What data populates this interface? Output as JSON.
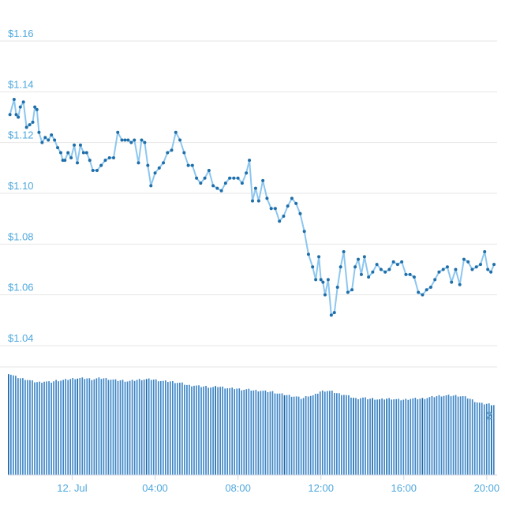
{
  "chart_data": [
    {
      "type": "line",
      "title": "",
      "xlabel": "",
      "ylabel": "",
      "ylim": [
        1.04,
        1.16
      ],
      "y_ticks": [
        "$1.16",
        "$1.14",
        "$1.12",
        "$1.10",
        "$1.08",
        "$1.06",
        "$1.04"
      ],
      "y_tick_values": [
        1.16,
        1.14,
        1.12,
        1.1,
        1.08,
        1.06,
        1.04
      ],
      "x_ticks": [
        {
          "label": "12. Jul",
          "hours": 0
        },
        {
          "label": "04:00",
          "hours": 4
        },
        {
          "label": "08:00",
          "hours": 8
        },
        {
          "label": "12:00",
          "hours": 12
        },
        {
          "label": "16:00",
          "hours": 16
        },
        {
          "label": "20:00",
          "hours": 20
        }
      ],
      "x_range_hours": [
        -3.1,
        20.5
      ],
      "grid": true,
      "colors": {
        "line": "#8cc6ef",
        "marker": "#1f6ea8"
      },
      "series": [
        {
          "hours": [
            -3.0,
            -2.8,
            -2.7,
            -2.6,
            -2.5,
            -2.35,
            -2.2,
            -2.05,
            -1.9,
            -1.8,
            -1.7,
            -1.6,
            -1.45,
            -1.3,
            -1.15,
            -1.0,
            -0.85,
            -0.7,
            -0.55,
            -0.45,
            -0.35,
            -0.2,
            -0.05,
            0.1,
            0.25,
            0.4,
            0.55,
            0.7,
            0.85,
            1.0,
            1.2,
            1.4,
            1.6,
            1.8,
            2.0,
            2.2,
            2.4,
            2.55,
            2.7,
            2.85,
            3.0,
            3.2,
            3.35,
            3.5,
            3.65,
            3.8,
            4.0,
            4.2,
            4.4,
            4.6,
            4.8,
            5.0,
            5.2,
            5.4,
            5.6,
            5.8,
            6.0,
            6.2,
            6.4,
            6.6,
            6.8,
            7.0,
            7.2,
            7.4,
            7.6,
            7.8,
            8.0,
            8.2,
            8.4,
            8.55,
            8.7,
            8.85,
            9.0,
            9.2,
            9.4,
            9.6,
            9.8,
            10.0,
            10.2,
            10.4,
            10.6,
            10.8,
            11.0,
            11.2,
            11.4,
            11.6,
            11.75,
            11.9,
            12.0,
            12.1,
            12.2,
            12.35,
            12.5,
            12.65,
            12.8,
            12.95,
            13.1,
            13.3,
            13.5,
            13.65,
            13.8,
            13.95,
            14.1,
            14.3,
            14.5,
            14.7,
            14.9,
            15.1,
            15.3,
            15.5,
            15.7,
            15.9,
            16.1,
            16.3,
            16.5,
            16.7,
            16.9,
            17.1,
            17.3,
            17.5,
            17.7,
            17.9,
            18.1,
            18.3,
            18.5,
            18.7,
            18.9,
            19.1,
            19.3,
            19.5,
            19.7,
            19.9,
            20.05,
            20.2,
            20.35
          ],
          "values": [
            1.131,
            1.137,
            1.131,
            1.13,
            1.134,
            1.136,
            1.126,
            1.127,
            1.128,
            1.134,
            1.133,
            1.124,
            1.12,
            1.122,
            1.121,
            1.123,
            1.121,
            1.118,
            1.116,
            1.113,
            1.113,
            1.116,
            1.114,
            1.119,
            1.112,
            1.119,
            1.116,
            1.116,
            1.113,
            1.109,
            1.109,
            1.111,
            1.113,
            1.114,
            1.114,
            1.124,
            1.121,
            1.121,
            1.121,
            1.12,
            1.121,
            1.112,
            1.121,
            1.12,
            1.111,
            1.103,
            1.108,
            1.11,
            1.112,
            1.116,
            1.117,
            1.124,
            1.121,
            1.116,
            1.111,
            1.111,
            1.106,
            1.104,
            1.106,
            1.109,
            1.103,
            1.102,
            1.101,
            1.104,
            1.106,
            1.106,
            1.106,
            1.104,
            1.108,
            1.113,
            1.097,
            1.102,
            1.097,
            1.105,
            1.098,
            1.094,
            1.094,
            1.089,
            1.091,
            1.095,
            1.098,
            1.096,
            1.092,
            1.085,
            1.076,
            1.071,
            1.066,
            1.075,
            1.066,
            1.065,
            1.06,
            1.066,
            1.052,
            1.053,
            1.063,
            1.071,
            1.077,
            1.061,
            1.062,
            1.071,
            1.074,
            1.068,
            1.075,
            1.067,
            1.069,
            1.072,
            1.07,
            1.069,
            1.07,
            1.073,
            1.072,
            1.073,
            1.068,
            1.068,
            1.067,
            1.061,
            1.06,
            1.062,
            1.063,
            1.066,
            1.069,
            1.07,
            1.071,
            1.065,
            1.07,
            1.064,
            1.074,
            1.073,
            1.07,
            1.071,
            1.072,
            1.077,
            1.07,
            1.069,
            1.072
          ]
        }
      ]
    },
    {
      "type": "bar",
      "title": "",
      "grid": false,
      "colors": {
        "bar": "#3d85c6",
        "bar_dark": "#1666a8"
      },
      "volume_relative": [
        1.0,
        0.97,
        0.95,
        0.94,
        0.92,
        0.91,
        0.92,
        0.91,
        0.93,
        0.93,
        0.94,
        0.95,
        0.95,
        0.95,
        0.94,
        0.95,
        0.95,
        0.94,
        0.93,
        0.93,
        0.92,
        0.93,
        0.94,
        0.94,
        0.94,
        0.93,
        0.92,
        0.92,
        0.91,
        0.9,
        0.88,
        0.88,
        0.87,
        0.87,
        0.86,
        0.87,
        0.86,
        0.85,
        0.85,
        0.84,
        0.84,
        0.83,
        0.83,
        0.82,
        0.82,
        0.8,
        0.79,
        0.78,
        0.77,
        0.75,
        0.78,
        0.78,
        0.82,
        0.83,
        0.82,
        0.8,
        0.79,
        0.77,
        0.75,
        0.76,
        0.75,
        0.75,
        0.74,
        0.75,
        0.75,
        0.74,
        0.74,
        0.75,
        0.75,
        0.75,
        0.76,
        0.77,
        0.78,
        0.78,
        0.78,
        0.78,
        0.77,
        0.75,
        0.72,
        0.7,
        0.7,
        0.69
      ],
      "value_label": "2"
    }
  ]
}
